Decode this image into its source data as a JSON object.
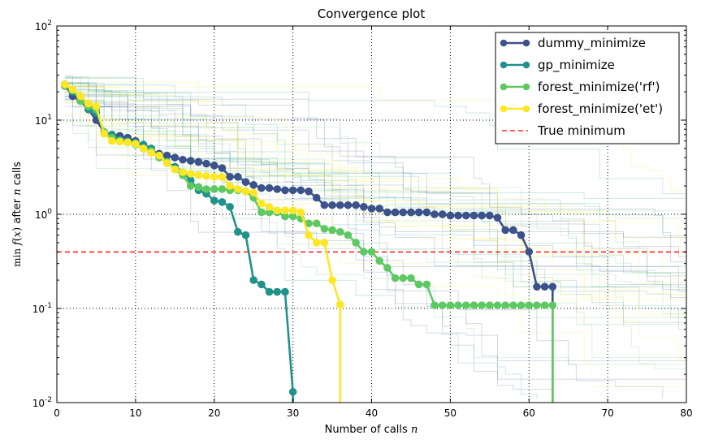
{
  "chart_data": {
    "type": "line",
    "title": "Convergence plot",
    "xlabel": "Number of calls n",
    "ylabel": "min f(x) after n calls",
    "xlim": [
      0,
      80
    ],
    "ylim": [
      0.01,
      100
    ],
    "yscale": "log",
    "grid": true,
    "legend_position": "top-right",
    "x_ticks": [
      0,
      10,
      20,
      30,
      40,
      50,
      60,
      70,
      80
    ],
    "x_tick_labels": [
      "0",
      "10",
      "20",
      "30",
      "40",
      "50",
      "60",
      "70",
      "80"
    ],
    "y_ticks": [
      0.01,
      0.1,
      1,
      10,
      100
    ],
    "y_tick_labels": [
      {
        "base": "10",
        "exp": "-2"
      },
      {
        "base": "10",
        "exp": "-1"
      },
      {
        "base": "10",
        "exp": "0"
      },
      {
        "base": "10",
        "exp": "1"
      },
      {
        "base": "10",
        "exp": "2"
      }
    ],
    "series": [
      {
        "name": "dummy_minimize",
        "color": "#3b528b",
        "x": [
          1,
          2,
          3,
          4,
          5,
          6,
          7,
          8,
          9,
          10,
          11,
          12,
          13,
          14,
          15,
          16,
          17,
          18,
          19,
          20,
          21,
          22,
          23,
          24,
          25,
          26,
          27,
          28,
          29,
          30,
          31,
          32,
          33,
          34,
          35,
          36,
          37,
          38,
          39,
          40,
          41,
          42,
          43,
          44,
          45,
          46,
          47,
          48,
          49,
          50,
          51,
          52,
          53,
          54,
          55,
          56,
          57,
          58,
          59,
          60,
          61,
          62,
          63
        ],
        "y": [
          24,
          18,
          16,
          13,
          10,
          7.5,
          7,
          6.8,
          6.5,
          6.0,
          5.2,
          4.7,
          4.4,
          4.2,
          4.0,
          3.8,
          3.7,
          3.6,
          3.45,
          3.3,
          3.1,
          2.5,
          2.5,
          2.2,
          2.05,
          1.9,
          1.9,
          1.85,
          1.8,
          1.8,
          1.8,
          1.75,
          1.5,
          1.25,
          1.25,
          1.25,
          1.25,
          1.25,
          1.2,
          1.15,
          1.15,
          1.05,
          1.05,
          1.05,
          1.05,
          1.05,
          1.05,
          1.0,
          1.0,
          0.97,
          0.97,
          0.97,
          0.97,
          0.97,
          0.97,
          0.92,
          0.68,
          0.68,
          0.6,
          0.4,
          0.17,
          0.17,
          0.17
        ]
      },
      {
        "name": "gp_minimize",
        "color": "#21918c",
        "x": [
          1,
          2,
          3,
          4,
          5,
          6,
          7,
          8,
          9,
          10,
          11,
          12,
          13,
          14,
          15,
          16,
          17,
          18,
          19,
          20,
          21,
          22,
          23,
          24,
          25,
          26,
          27,
          28,
          29,
          30
        ],
        "y": [
          24,
          20,
          17,
          13,
          12,
          7.5,
          7,
          6.2,
          6.0,
          5.8,
          5.5,
          5.0,
          4.2,
          3.5,
          3.2,
          2.8,
          2.3,
          1.8,
          1.65,
          1.4,
          1.35,
          1.2,
          0.65,
          0.6,
          0.2,
          0.18,
          0.15,
          0.15,
          0.15,
          0.013
        ]
      },
      {
        "name": "forest_minimize('rf')",
        "color": "#5ec962",
        "x": [
          1,
          2,
          3,
          4,
          5,
          6,
          7,
          8,
          9,
          10,
          11,
          12,
          13,
          14,
          15,
          16,
          17,
          18,
          19,
          20,
          21,
          22,
          23,
          24,
          25,
          26,
          27,
          28,
          29,
          30,
          31,
          32,
          33,
          34,
          35,
          36,
          37,
          38,
          39,
          40,
          41,
          42,
          43,
          44,
          45,
          46,
          47,
          48,
          49,
          50,
          51,
          52,
          53,
          54,
          55,
          56,
          57,
          58,
          59,
          60,
          61,
          62,
          63
        ],
        "y": [
          23,
          21,
          16,
          14,
          13,
          7.5,
          6.5,
          6,
          5.8,
          5.5,
          5.0,
          4.7,
          4.0,
          3.6,
          3.0,
          2.6,
          2.0,
          1.95,
          1.85,
          1.85,
          1.85,
          1.8,
          1.8,
          1.75,
          1.5,
          1.05,
          1.05,
          1.05,
          0.95,
          0.95,
          0.9,
          0.8,
          0.8,
          0.7,
          0.68,
          0.65,
          0.6,
          0.5,
          0.4,
          0.4,
          0.32,
          0.27,
          0.21,
          0.21,
          0.21,
          0.18,
          0.18,
          0.108,
          0.108,
          0.108,
          0.108,
          0.108,
          0.108,
          0.108,
          0.108,
          0.108,
          0.108,
          0.108,
          0.108,
          0.108,
          0.108,
          0.108,
          0.108
        ]
      },
      {
        "name": "forest_minimize('et')",
        "color": "#fde725",
        "x": [
          1,
          2,
          3,
          4,
          5,
          6,
          7,
          8,
          9,
          10,
          11,
          12,
          13,
          14,
          15,
          16,
          17,
          18,
          19,
          20,
          21,
          22,
          23,
          24,
          25,
          26,
          27,
          28,
          29,
          30,
          31,
          32,
          33,
          34,
          35,
          36
        ],
        "y": [
          24,
          21,
          18,
          15,
          14,
          7.2,
          6.0,
          5.9,
          5.8,
          5.6,
          5.0,
          4.5,
          4.2,
          3.5,
          3.0,
          2.8,
          2.7,
          2.6,
          2.55,
          2.5,
          2.5,
          2.0,
          1.85,
          1.75,
          1.7,
          1.3,
          1.2,
          1.1,
          1.1,
          1.1,
          1.05,
          0.6,
          0.5,
          0.5,
          0.2,
          0.11
        ]
      }
    ],
    "true_minimum": {
      "name": "True minimum",
      "value": 0.398,
      "color": "#ff0000"
    }
  }
}
